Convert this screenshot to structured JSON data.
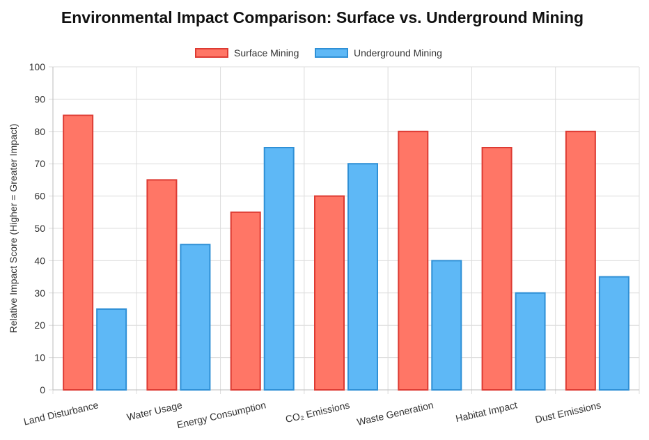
{
  "chart_data": {
    "type": "bar",
    "title": "Environmental Impact Comparison: Surface vs. Underground Mining",
    "ylabel": "Relative Impact Score (Higher = Greater Impact)",
    "xlabel": "",
    "ylim": [
      0,
      100
    ],
    "yticks": [
      0,
      10,
      20,
      30,
      40,
      50,
      60,
      70,
      80,
      90,
      100
    ],
    "grid": true,
    "legend_position": "top-center",
    "categories": [
      "Land Disturbance",
      "Water Usage",
      "Energy Consumption",
      "CO₂ Emissions",
      "Waste Generation",
      "Habitat Impact",
      "Dust Emissions"
    ],
    "series": [
      {
        "name": "Surface Mining",
        "values": [
          85,
          65,
          55,
          60,
          80,
          75,
          80
        ],
        "fill": "#ff7666",
        "stroke": "#dd3b33"
      },
      {
        "name": "Underground Mining",
        "values": [
          25,
          45,
          75,
          70,
          40,
          30,
          35
        ],
        "fill": "#5eb8f6",
        "stroke": "#2f90d6"
      }
    ]
  }
}
